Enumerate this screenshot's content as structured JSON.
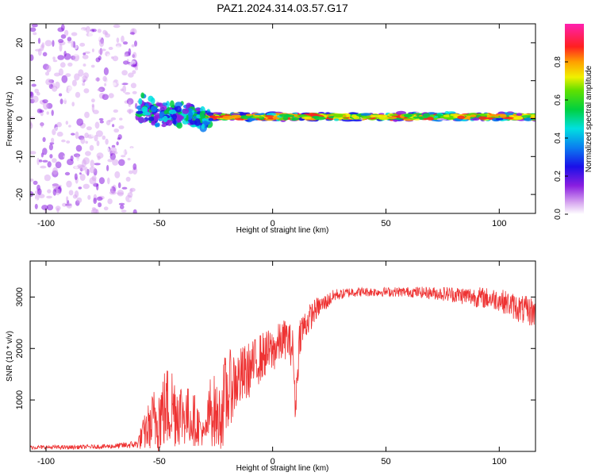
{
  "title": "PAZ1.2024.314.03.57.G17",
  "chart_data": [
    {
      "type": "heatmap",
      "xlabel": "Height of straight line (km)",
      "ylabel": "Frequency (Hz)",
      "xlim": [
        -107,
        116
      ],
      "ylim": [
        -25,
        25
      ],
      "xticks": [
        -100,
        -50,
        0,
        50,
        100
      ],
      "yticks": [
        -20,
        -10,
        0,
        10,
        20
      ],
      "colorbar": {
        "label": "Normalized spectral amplitude",
        "range": [
          0,
          1
        ],
        "ticks": [
          "0.0",
          "0.2",
          "0.4",
          "0.6",
          "0.8"
        ],
        "tick_values": [
          0.0,
          0.2,
          0.4,
          0.6,
          0.8
        ]
      },
      "regions": [
        {
          "x_range": [
            -107,
            -60
          ],
          "freq_spread": 25,
          "amplitude": 0.08,
          "description_level": "scattered noise"
        },
        {
          "x_range": [
            -60,
            -28
          ],
          "freq_center": 2,
          "freq_spread": 6,
          "amplitude": 0.25
        },
        {
          "x_range": [
            -28,
            116
          ],
          "freq_center": 0.5,
          "freq_spread": 1.5,
          "amplitude": 0.9
        }
      ]
    },
    {
      "type": "line",
      "xlabel": "Height of straight line (km)",
      "ylabel": "SNR (10 * v/v)",
      "xlim": [
        -107,
        116
      ],
      "ylim": [
        0,
        3700
      ],
      "xticks": [
        -100,
        -50,
        0,
        50,
        100
      ],
      "yticks": [
        1000,
        2000,
        3000
      ],
      "color": "#ee3333",
      "series": [
        {
          "x": [
            -107,
            -90,
            -80,
            -70,
            -60,
            -56,
            -52,
            -48,
            -45,
            -42,
            -38,
            -34,
            -30,
            -27,
            -24,
            -21,
            -18,
            -15,
            -12,
            -9,
            -6,
            -3,
            0,
            3,
            6,
            9,
            10,
            12,
            15,
            18,
            20,
            22,
            25,
            28,
            30,
            35,
            40,
            50,
            60,
            70,
            80,
            90,
            100,
            105,
            110,
            116
          ],
          "y": [
            80,
            80,
            90,
            100,
            140,
            400,
            600,
            800,
            900,
            800,
            700,
            600,
            300,
            900,
            600,
            1000,
            1300,
            1400,
            1500,
            1650,
            1800,
            1900,
            1950,
            2100,
            2200,
            2000,
            800,
            2300,
            2500,
            2700,
            2800,
            2850,
            2950,
            3050,
            3050,
            3100,
            3100,
            3100,
            3100,
            3080,
            3050,
            3000,
            2950,
            2850,
            2750,
            2700
          ],
          "noise": [
            40,
            40,
            40,
            50,
            80,
            400,
            700,
            800,
            900,
            700,
            600,
            500,
            200,
            800,
            600,
            900,
            700,
            600,
            600,
            500,
            500,
            450,
            450,
            400,
            400,
            400,
            300,
            400,
            300,
            250,
            200,
            180,
            150,
            120,
            100,
            100,
            90,
            90,
            100,
            120,
            160,
            200,
            220,
            250,
            280,
            300
          ]
        }
      ]
    }
  ]
}
